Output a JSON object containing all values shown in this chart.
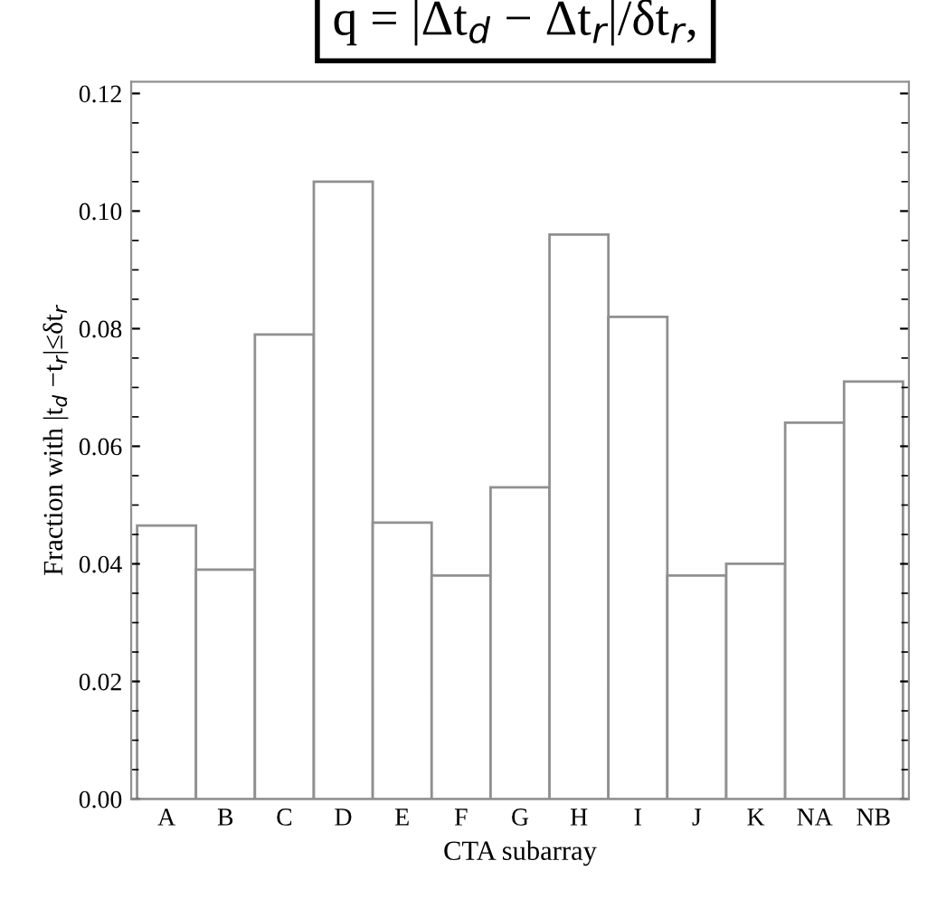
{
  "chart_data": {
    "type": "bar",
    "xlabel": "CTA subarray",
    "ylabel": "Fraction with |t$_{d}$ −t$_{r}$|≤δt$_{r}$",
    "categories": [
      "A",
      "B",
      "C",
      "D",
      "E",
      "F",
      "G",
      "H",
      "I",
      "J",
      "K",
      "NA",
      "NB"
    ],
    "values": [
      0.0465,
      0.039,
      0.079,
      0.105,
      0.047,
      0.038,
      0.053,
      0.096,
      0.082,
      0.038,
      0.04,
      0.064,
      0.071
    ],
    "color": "#ffffff",
    "ylim": [
      0,
      0.122
    ],
    "yticks": [
      {
        "value": 0,
        "label": "0.00"
      },
      {
        "value": 0.02,
        "label": "0.02"
      },
      {
        "value": 0.04,
        "label": "0.04"
      },
      {
        "value": 0.06,
        "label": "0.06"
      },
      {
        "value": 0.08,
        "label": "0.08"
      },
      {
        "value": 0.1,
        "label": "0.10"
      },
      {
        "value": 0.12,
        "label": "0.12"
      }
    ],
    "grid": false,
    "annotations": [
      "q = |Δt$_{d}$ − Δt$_{r}$|/δt$_{r}$,"
    ]
  }
}
